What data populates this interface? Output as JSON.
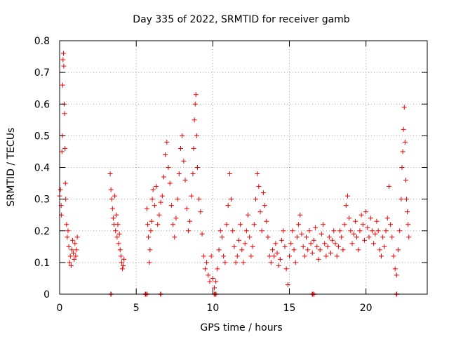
{
  "chart_data": {
    "type": "scatter",
    "title": "Day 335 of 2022, SRMTID for receiver gamb",
    "xlabel": "GPS time / hours",
    "ylabel": "SRMTID / TECUs",
    "xlim": [
      0,
      24
    ],
    "ylim": [
      0,
      0.8
    ],
    "xticks": [
      0,
      5,
      10,
      15,
      20
    ],
    "yticks": [
      0,
      0.1,
      0.2,
      0.3,
      0.4,
      0.5,
      0.6,
      0.7,
      0.8
    ],
    "xtick_labels": [
      "0",
      "5",
      "10",
      "15",
      "20"
    ],
    "ytick_labels": [
      "0",
      "0.1",
      "0.2",
      "0.3",
      "0.4",
      "0.5",
      "0.6",
      "0.7",
      "0.8"
    ],
    "grid": true,
    "marker": "+",
    "color": "#ee0000",
    "series": [
      {
        "name": "SRMTID",
        "points": [
          [
            0.0,
            0.31
          ],
          [
            0.05,
            0.33
          ],
          [
            0.1,
            0.28
          ],
          [
            0.12,
            0.25
          ],
          [
            0.15,
            0.45
          ],
          [
            0.18,
            0.5
          ],
          [
            0.2,
            0.66
          ],
          [
            0.22,
            0.74
          ],
          [
            0.25,
            0.76
          ],
          [
            0.27,
            0.72
          ],
          [
            0.3,
            0.6
          ],
          [
            0.32,
            0.57
          ],
          [
            0.35,
            0.46
          ],
          [
            0.38,
            0.35
          ],
          [
            0.4,
            0.3
          ],
          [
            0.45,
            0.22
          ],
          [
            0.5,
            0.18
          ],
          [
            0.55,
            0.2
          ],
          [
            0.6,
            0.15
          ],
          [
            0.65,
            0.1
          ],
          [
            0.7,
            0.12
          ],
          [
            0.75,
            0.09
          ],
          [
            0.8,
            0.14
          ],
          [
            0.85,
            0.17
          ],
          [
            0.9,
            0.13
          ],
          [
            0.95,
            0.11
          ],
          [
            1.0,
            0.16
          ],
          [
            1.05,
            0.12
          ],
          [
            1.1,
            0.14
          ],
          [
            1.15,
            0.18
          ],
          [
            3.3,
            0.38
          ],
          [
            3.35,
            0.33
          ],
          [
            3.4,
            0.3
          ],
          [
            3.45,
            0.27
          ],
          [
            3.5,
            0.24
          ],
          [
            3.55,
            0.22
          ],
          [
            3.6,
            0.31
          ],
          [
            3.65,
            0.2
          ],
          [
            3.7,
            0.25
          ],
          [
            3.75,
            0.18
          ],
          [
            3.8,
            0.22
          ],
          [
            3.85,
            0.16
          ],
          [
            3.9,
            0.19
          ],
          [
            3.95,
            0.14
          ],
          [
            4.0,
            0.12
          ],
          [
            4.05,
            0.1
          ],
          [
            4.1,
            0.08
          ],
          [
            4.15,
            0.09
          ],
          [
            4.2,
            0.11
          ],
          [
            5.7,
            0.27
          ],
          [
            5.75,
            0.22
          ],
          [
            5.8,
            0.18
          ],
          [
            5.85,
            0.1
          ],
          [
            5.9,
            0.14
          ],
          [
            5.95,
            0.2
          ],
          [
            6.0,
            0.23
          ],
          [
            6.05,
            0.3
          ],
          [
            6.1,
            0.33
          ],
          [
            6.2,
            0.28
          ],
          [
            6.3,
            0.34
          ],
          [
            6.4,
            0.22
          ],
          [
            6.5,
            0.25
          ],
          [
            6.6,
            0.29
          ],
          [
            6.7,
            0.31
          ],
          [
            6.8,
            0.37
          ],
          [
            6.9,
            0.44
          ],
          [
            7.0,
            0.48
          ],
          [
            7.1,
            0.4
          ],
          [
            7.2,
            0.35
          ],
          [
            7.3,
            0.28
          ],
          [
            7.4,
            0.22
          ],
          [
            7.5,
            0.18
          ],
          [
            7.6,
            0.24
          ],
          [
            7.7,
            0.3
          ],
          [
            7.8,
            0.38
          ],
          [
            7.9,
            0.46
          ],
          [
            8.0,
            0.5
          ],
          [
            8.1,
            0.42
          ],
          [
            8.2,
            0.36
          ],
          [
            8.3,
            0.27
          ],
          [
            8.4,
            0.2
          ],
          [
            8.5,
            0.23
          ],
          [
            8.6,
            0.31
          ],
          [
            8.7,
            0.38
          ],
          [
            8.75,
            0.46
          ],
          [
            8.8,
            0.55
          ],
          [
            8.85,
            0.6
          ],
          [
            8.9,
            0.63
          ],
          [
            8.95,
            0.5
          ],
          [
            9.0,
            0.4
          ],
          [
            9.1,
            0.3
          ],
          [
            9.2,
            0.26
          ],
          [
            9.3,
            0.19
          ],
          [
            9.4,
            0.12
          ],
          [
            9.5,
            0.08
          ],
          [
            9.6,
            0.1
          ],
          [
            9.7,
            0.06
          ],
          [
            9.8,
            0.04
          ],
          [
            9.9,
            0.12
          ],
          [
            10.0,
            0.05
          ],
          [
            10.1,
            0.02
          ],
          [
            10.2,
            0.04
          ],
          [
            10.3,
            0.08
          ],
          [
            10.4,
            0.14
          ],
          [
            10.5,
            0.2
          ],
          [
            10.6,
            0.18
          ],
          [
            10.7,
            0.12
          ],
          [
            10.8,
            0.1
          ],
          [
            10.9,
            0.22
          ],
          [
            11.0,
            0.28
          ],
          [
            11.1,
            0.38
          ],
          [
            11.2,
            0.3
          ],
          [
            11.3,
            0.2
          ],
          [
            11.4,
            0.15
          ],
          [
            11.5,
            0.1
          ],
          [
            11.6,
            0.12
          ],
          [
            11.7,
            0.17
          ],
          [
            11.8,
            0.22
          ],
          [
            11.9,
            0.14
          ],
          [
            12.0,
            0.1
          ],
          [
            12.1,
            0.16
          ],
          [
            12.2,
            0.2
          ],
          [
            12.3,
            0.25
          ],
          [
            12.4,
            0.18
          ],
          [
            12.5,
            0.12
          ],
          [
            12.6,
            0.15
          ],
          [
            12.7,
            0.22
          ],
          [
            12.8,
            0.3
          ],
          [
            12.9,
            0.38
          ],
          [
            13.0,
            0.34
          ],
          [
            13.1,
            0.26
          ],
          [
            13.2,
            0.2
          ],
          [
            13.3,
            0.32
          ],
          [
            13.4,
            0.28
          ],
          [
            13.5,
            0.23
          ],
          [
            13.6,
            0.18
          ],
          [
            13.7,
            0.12
          ],
          [
            13.8,
            0.1
          ],
          [
            13.9,
            0.14
          ],
          [
            14.0,
            0.12
          ],
          [
            14.1,
            0.16
          ],
          [
            14.2,
            0.13
          ],
          [
            14.3,
            0.09
          ],
          [
            14.4,
            0.11
          ],
          [
            14.5,
            0.17
          ],
          [
            14.6,
            0.2
          ],
          [
            14.7,
            0.15
          ],
          [
            14.8,
            0.08
          ],
          [
            14.9,
            0.03
          ],
          [
            15.0,
            0.12
          ],
          [
            15.1,
            0.16
          ],
          [
            15.2,
            0.2
          ],
          [
            15.3,
            0.14
          ],
          [
            15.4,
            0.1
          ],
          [
            15.5,
            0.18
          ],
          [
            15.6,
            0.22
          ],
          [
            15.7,
            0.25
          ],
          [
            15.8,
            0.19
          ],
          [
            15.9,
            0.15
          ],
          [
            16.0,
            0.12
          ],
          [
            16.1,
            0.18
          ],
          [
            16.2,
            0.14
          ],
          [
            16.3,
            0.2
          ],
          [
            16.4,
            0.16
          ],
          [
            16.5,
            0.13
          ],
          [
            16.6,
            0.17
          ],
          [
            16.7,
            0.21
          ],
          [
            16.8,
            0.15
          ],
          [
            16.9,
            0.11
          ],
          [
            17.0,
            0.14
          ],
          [
            17.1,
            0.19
          ],
          [
            17.2,
            0.22
          ],
          [
            17.3,
            0.16
          ],
          [
            17.4,
            0.12
          ],
          [
            17.5,
            0.15
          ],
          [
            17.6,
            0.18
          ],
          [
            17.7,
            0.13
          ],
          [
            17.8,
            0.17
          ],
          [
            17.9,
            0.2
          ],
          [
            18.0,
            0.16
          ],
          [
            18.1,
            0.12
          ],
          [
            18.2,
            0.15
          ],
          [
            18.3,
            0.2
          ],
          [
            18.4,
            0.18
          ],
          [
            18.5,
            0.14
          ],
          [
            18.6,
            0.22
          ],
          [
            18.7,
            0.28
          ],
          [
            18.8,
            0.31
          ],
          [
            18.9,
            0.24
          ],
          [
            19.0,
            0.2
          ],
          [
            19.1,
            0.16
          ],
          [
            19.2,
            0.19
          ],
          [
            19.3,
            0.23
          ],
          [
            19.4,
            0.18
          ],
          [
            19.5,
            0.14
          ],
          [
            19.6,
            0.2
          ],
          [
            19.7,
            0.25
          ],
          [
            19.8,
            0.22
          ],
          [
            19.9,
            0.17
          ],
          [
            20.0,
            0.26
          ],
          [
            20.1,
            0.21
          ],
          [
            20.2,
            0.18
          ],
          [
            20.3,
            0.24
          ],
          [
            20.4,
            0.2
          ],
          [
            20.5,
            0.16
          ],
          [
            20.6,
            0.19
          ],
          [
            20.7,
            0.23
          ],
          [
            20.8,
            0.2
          ],
          [
            20.9,
            0.14
          ],
          [
            21.0,
            0.12
          ],
          [
            21.1,
            0.18
          ],
          [
            21.2,
            0.15
          ],
          [
            21.3,
            0.2
          ],
          [
            21.4,
            0.24
          ],
          [
            21.5,
            0.34
          ],
          [
            21.6,
            0.22
          ],
          [
            21.7,
            0.18
          ],
          [
            21.8,
            0.12
          ],
          [
            21.9,
            0.08
          ],
          [
            22.0,
            0.06
          ],
          [
            22.1,
            0.14
          ],
          [
            22.2,
            0.2
          ],
          [
            22.3,
            0.3
          ],
          [
            22.35,
            0.4
          ],
          [
            22.4,
            0.45
          ],
          [
            22.45,
            0.52
          ],
          [
            22.5,
            0.59
          ],
          [
            22.55,
            0.48
          ],
          [
            22.6,
            0.36
          ],
          [
            22.65,
            0.3
          ],
          [
            22.7,
            0.26
          ],
          [
            22.75,
            0.22
          ],
          [
            22.8,
            0.18
          ]
        ]
      }
    ],
    "baseline_points": [
      3.35,
      5.6,
      5.7,
      6.6,
      10.1,
      10.2,
      16.5,
      16.6,
      22.0
    ]
  }
}
